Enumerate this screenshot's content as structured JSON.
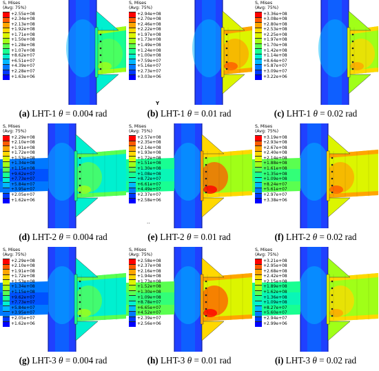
{
  "legend_title": "S, Mises",
  "legend_avg": "(Avg: 75%)",
  "theta_symbol": "θ",
  "colors": {
    "contour_scale": [
      "#ff0000",
      "#ff5a00",
      "#ffa500",
      "#ffd800",
      "#dcf500",
      "#a0ff18",
      "#5aff50",
      "#18ff92",
      "#00f0d0",
      "#00b8ff",
      "#0078ff",
      "#0038ff",
      "#0000ff"
    ],
    "column": "#2040ff",
    "column_edge": "#1020a0",
    "background": "#ffffff"
  },
  "panels": [
    {
      "label": "(a)",
      "specimen": "LHT-1",
      "value": "= 0.004 rad",
      "legend_values": [
        "+2.55e+08",
        "+2.34e+08",
        "+2.13e+08",
        "+1.92e+08",
        "+1.71e+08",
        "+1.50e+08",
        "+1.28e+08",
        "+1.07e+08",
        "+8.62e+07",
        "+6.51e+07",
        "+4.39e+07",
        "+2.28e+07",
        "+1.63e+06"
      ]
    },
    {
      "label": "(b)",
      "specimen": "LHT-1",
      "value": "= 0.01 rad",
      "legend_values": [
        "+2.94e+08",
        "+2.70e+08",
        "+2.46e+08",
        "+2.22e+08",
        "+1.97e+08",
        "+1.73e+08",
        "+1.49e+08",
        "+1.24e+08",
        "+1.00e+08",
        "+7.59e+07",
        "+5.16e+07",
        "+2.73e+07",
        "+3.03e+06"
      ]
    },
    {
      "label": "(c)",
      "specimen": "LHT-1",
      "value": "= 0.02 rad",
      "legend_values": [
        "+3.36e+08",
        "+3.08e+08",
        "+2.80e+08",
        "+2.53e+08",
        "+2.25e+08",
        "+1.97e+08",
        "+1.70e+08",
        "+1.42e+08",
        "+1.14e+08",
        "+8.64e+07",
        "+5.87e+07",
        "+3.09e+07",
        "+3.22e+06"
      ]
    },
    {
      "label": "(d)",
      "specimen": "LHT-2",
      "value": "= 0.004 rad",
      "legend_values": [
        "+2.29e+08",
        "+2.10e+08",
        "+1.91e+08",
        "+1.72e+08",
        "+1.53e+08",
        "+1.34e+08",
        "+1.15e+08",
        "+9.62e+07",
        "+7.73e+07",
        "+5.84e+07",
        "+3.95e+07",
        "+2.05e+07",
        "+1.62e+06"
      ]
    },
    {
      "label": "(e)",
      "specimen": "LHT-2",
      "value": "= 0.01 rad",
      "legend_values": [
        "+2.57e+08",
        "+2.35e+08",
        "+2.14e+08",
        "+1.93e+08",
        "+1.72e+08",
        "+1.51e+08",
        "+1.30e+08",
        "+1.08e+08",
        "+8.72e+07",
        "+6.61e+07",
        "+4.49e+07",
        "+2.37e+07",
        "+2.58e+06"
      ]
    },
    {
      "label": "(f)",
      "specimen": "LHT-2",
      "value": "= 0.02 rad",
      "legend_values": [
        "+3.19e+08",
        "+2.93e+08",
        "+2.67e+08",
        "+2.40e+08",
        "+2.14e+08",
        "+1.88e+08",
        "+1.61e+08",
        "+1.35e+08",
        "+1.09e+08",
        "+8.24e+07",
        "+5.61e+07",
        "+2.97e+07",
        "+3.38e+06"
      ]
    },
    {
      "label": "(g)",
      "specimen": "LHT-3",
      "value": "= 0.004 rad",
      "legend_values": [
        "+2.29e+08",
        "+2.10e+08",
        "+1.91e+08",
        "+1.72e+08",
        "+1.53e+08",
        "+1.34e+08",
        "+1.15e+08",
        "+9.62e+07",
        "+7.73e+07",
        "+5.84e+07",
        "+3.95e+07",
        "+2.05e+07",
        "+1.62e+06"
      ]
    },
    {
      "label": "(h)",
      "specimen": "LHT-3",
      "value": "= 0.01 rad",
      "legend_values": [
        "+2.58e+08",
        "+2.37e+08",
        "+2.16e+08",
        "+1.94e+08",
        "+1.73e+08",
        "+1.52e+08",
        "+1.30e+08",
        "+1.09e+08",
        "+8.78e+07",
        "+6.65e+07",
        "+4.52e+07",
        "+2.39e+07",
        "+2.56e+06"
      ]
    },
    {
      "label": "(i)",
      "specimen": "LHT-3",
      "value": "= 0.02 rad",
      "legend_values": [
        "+3.21e+08",
        "+2.95e+08",
        "+2.68e+08",
        "+2.42e+08",
        "+2.15e+08",
        "+1.89e+08",
        "+1.62e+08",
        "+1.36e+08",
        "+1.09e+08",
        "+8.27e+07",
        "+5.60e+07",
        "+2.94e+07",
        "+2.99e+06"
      ]
    }
  ],
  "stray_marks": {
    "axis_letter": "Y",
    "dots": "··"
  }
}
